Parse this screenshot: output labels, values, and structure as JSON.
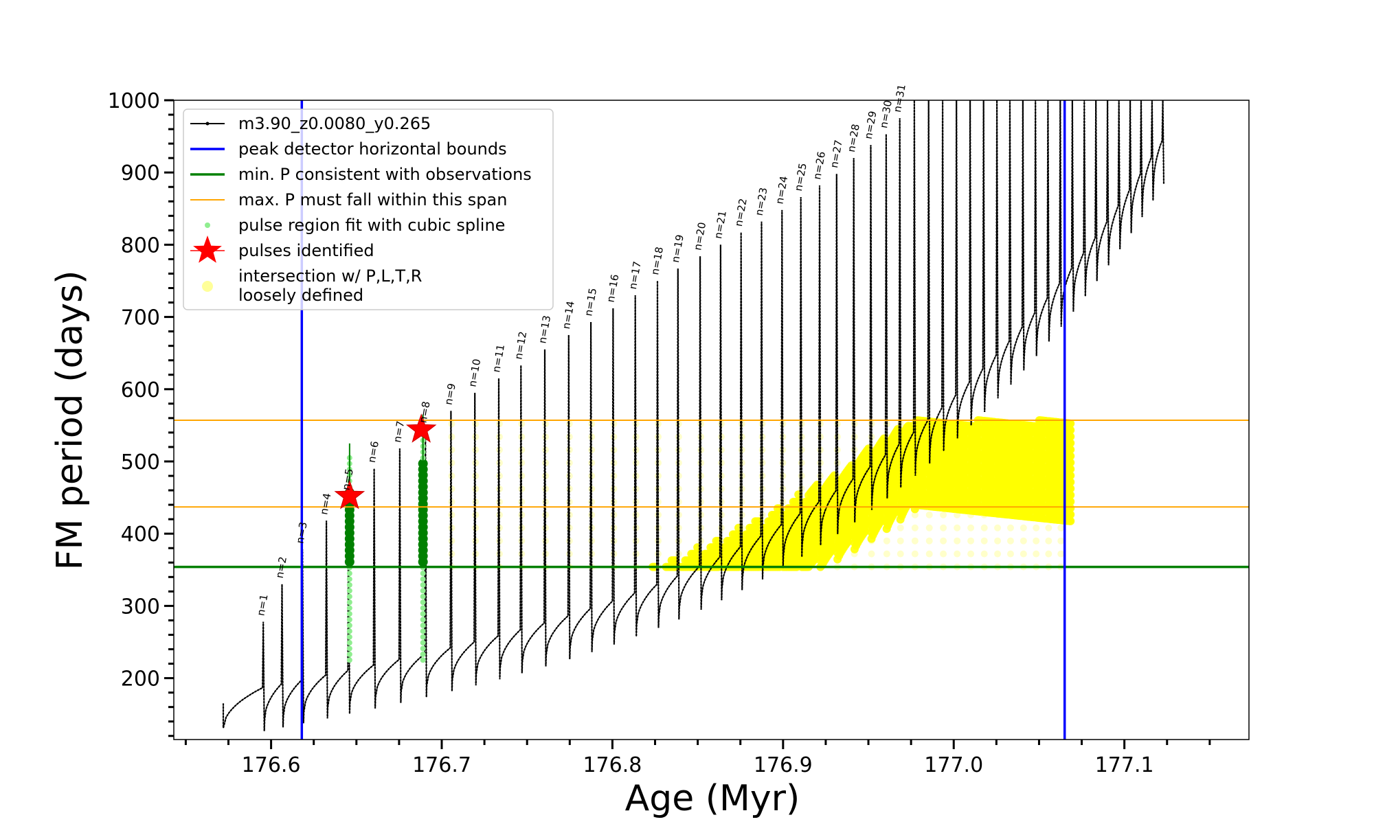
{
  "chart_data": {
    "type": "scatter",
    "title": "",
    "xlabel": "Age (Myr)",
    "ylabel": "FM period (days)",
    "xlim": [
      176.543,
      177.173
    ],
    "ylim": [
      115,
      1000
    ],
    "xticks": [
      176.6,
      176.7,
      176.8,
      176.9,
      177.0,
      177.1
    ],
    "xtick_labels": [
      "176.6",
      "176.7",
      "176.8",
      "176.9",
      "177.0",
      "177.1"
    ],
    "yticks": [
      200,
      300,
      400,
      500,
      600,
      700,
      800,
      900,
      1000
    ],
    "ytick_labels": [
      "200",
      "300",
      "400",
      "500",
      "600",
      "700",
      "800",
      "900",
      "1000"
    ],
    "grid": false,
    "legend_position": "top-left",
    "legend": [
      {
        "label": "m3.90_z0.0080_y0.265",
        "marker": "line-dot",
        "color": "#000000"
      },
      {
        "label": "peak detector horizontal bounds",
        "marker": "line",
        "color": "#0000ff"
      },
      {
        "label": "min. P consistent with observations",
        "marker": "line",
        "color": "#008000"
      },
      {
        "label": "max. P must fall within this span",
        "marker": "thin-line",
        "color": "#ffa500"
      },
      {
        "label": "pulse region fit with cubic spline",
        "marker": "dot",
        "color": "#90ee90"
      },
      {
        "label": "pulses identified",
        "marker": "star",
        "color": "#ff0000"
      },
      {
        "label": "intersection w/ P,L,T,R",
        "label2": "loosely defined",
        "marker": "circle",
        "color": "#ffff99"
      }
    ],
    "reference_lines": {
      "peak_detector_bounds_x": [
        176.618,
        177.065
      ],
      "min_period_y": 354,
      "max_period_span_y": [
        437,
        557
      ]
    },
    "pulses": [
      {
        "n": "n=1",
        "age": 176.595,
        "peak": 278
      },
      {
        "n": "n=2",
        "age": 176.606,
        "peak": 330
      },
      {
        "n": "n=3",
        "age": 176.618,
        "peak": 378
      },
      {
        "n": "n=4",
        "age": 176.632,
        "peak": 418
      },
      {
        "n": "n=5",
        "age": 176.645,
        "peak": 452
      },
      {
        "n": "n=6",
        "age": 176.66,
        "peak": 490
      },
      {
        "n": "n=7",
        "age": 176.675,
        "peak": 518
      },
      {
        "n": "n=8",
        "age": 176.69,
        "peak": 545
      },
      {
        "n": "n=9",
        "age": 176.705,
        "peak": 570
      },
      {
        "n": "n=10",
        "age": 176.719,
        "peak": 595
      },
      {
        "n": "n=11",
        "age": 176.733,
        "peak": 615
      },
      {
        "n": "n=12",
        "age": 176.746,
        "peak": 633
      },
      {
        "n": "n=13",
        "age": 176.76,
        "peak": 655
      },
      {
        "n": "n=14",
        "age": 176.774,
        "peak": 675
      },
      {
        "n": "n=15",
        "age": 176.787,
        "peak": 693
      },
      {
        "n": "n=16",
        "age": 176.8,
        "peak": 712
      },
      {
        "n": "n=17",
        "age": 176.813,
        "peak": 730
      },
      {
        "n": "n=18",
        "age": 176.826,
        "peak": 750
      },
      {
        "n": "n=19",
        "age": 176.838,
        "peak": 767
      },
      {
        "n": "n=20",
        "age": 176.851,
        "peak": 784
      },
      {
        "n": "n=21",
        "age": 176.863,
        "peak": 800
      },
      {
        "n": "n=22",
        "age": 176.875,
        "peak": 817
      },
      {
        "n": "n=23",
        "age": 176.887,
        "peak": 832
      },
      {
        "n": "n=24",
        "age": 176.899,
        "peak": 848
      },
      {
        "n": "n=25",
        "age": 176.91,
        "peak": 866
      },
      {
        "n": "n=26",
        "age": 176.921,
        "peak": 882
      },
      {
        "n": "n=27",
        "age": 176.931,
        "peak": 898
      },
      {
        "n": "n=28",
        "age": 176.941,
        "peak": 920
      },
      {
        "n": "n=29",
        "age": 176.951,
        "peak": 938
      },
      {
        "n": "n=30",
        "age": 176.96,
        "peak": 953
      },
      {
        "n": "n=31",
        "age": 176.968,
        "peak": 975
      }
    ],
    "identified_pulses": [
      {
        "age": 176.646,
        "period": 452
      },
      {
        "age": 176.688,
        "period": 544
      }
    ],
    "spline_fit_pulses": [
      {
        "age": 176.646,
        "ymin": 225,
        "ymax": 505
      },
      {
        "age": 176.689,
        "ymin": 225,
        "ymax": 545
      }
    ]
  }
}
